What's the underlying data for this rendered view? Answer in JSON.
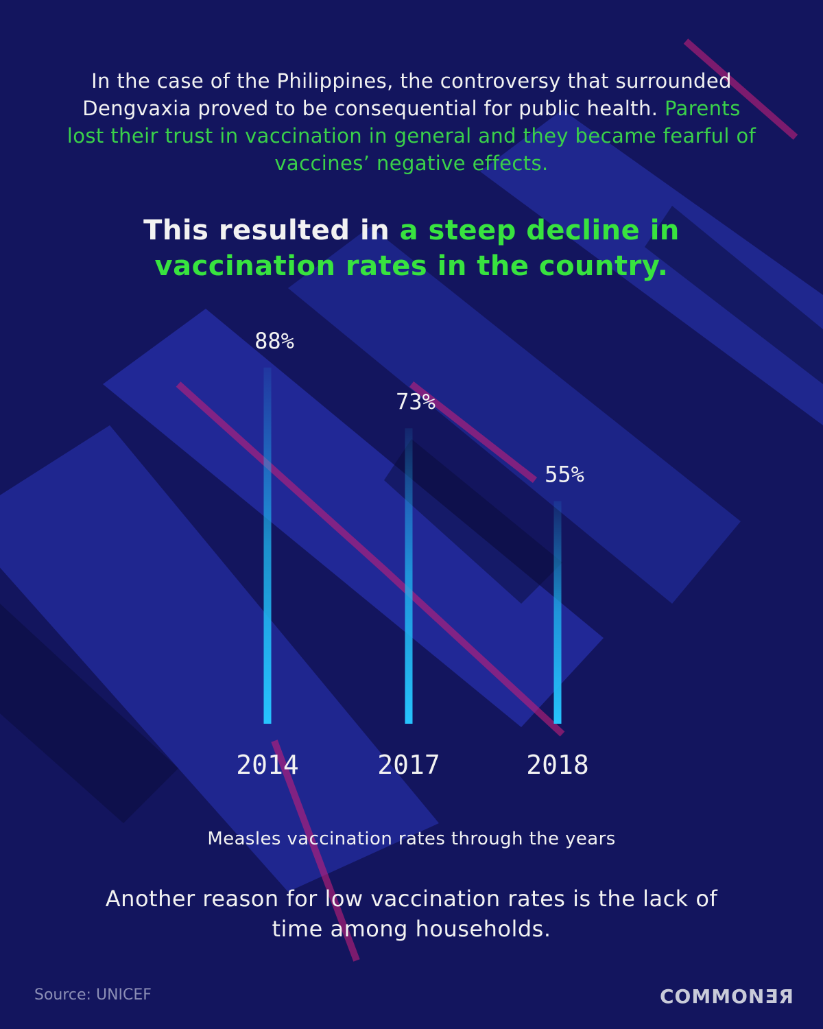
{
  "intro": {
    "text": "In the case of the Philippines, the controversy that surrounded Dengvaxia proved to be consequential for public health.",
    "highlight": "Parents lost their trust in vaccination in general and they became fearful of vaccines’ negative effects."
  },
  "headline": {
    "text": "This resulted in",
    "highlight": "a steep decline in vaccination rates in the country."
  },
  "chart_data": {
    "type": "bar",
    "categories": [
      "2014",
      "2017",
      "2018"
    ],
    "values": [
      88,
      73,
      55
    ],
    "value_labels": [
      "88%",
      "73%",
      "55%"
    ],
    "title": "Measles vaccination rates through the years",
    "xlabel": "",
    "ylabel": "",
    "ylim": [
      0,
      100
    ],
    "bar_color": "#1fb8f0",
    "grid": false
  },
  "closing": "Another reason for low vaccination rates is the lack of time among households.",
  "source": "Source: UNICEF",
  "logo": "COMMONƎЯ",
  "colors": {
    "background": "#13155e",
    "highlight": "#38e33f",
    "bar": "#1fb8f0",
    "accent": "#c2207a"
  }
}
